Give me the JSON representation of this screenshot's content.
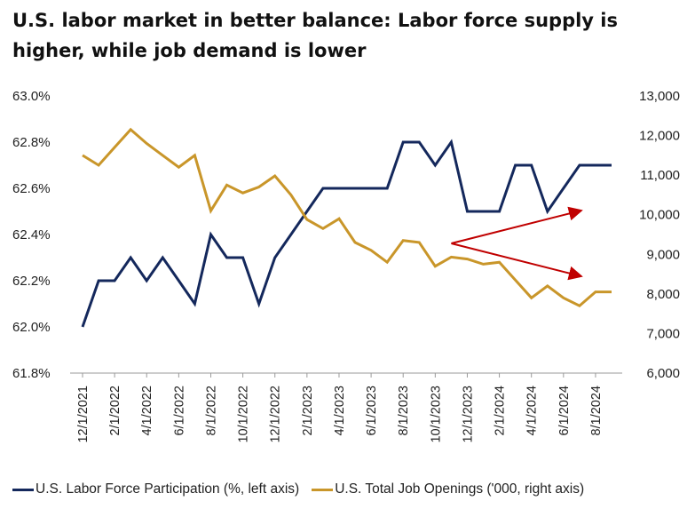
{
  "title": "U.S. labor market in better balance: Labor force supply is higher, while job demand is lower",
  "colors": {
    "participation": "#14285c",
    "openings": "#c9962a",
    "arrow": "#c00000"
  },
  "chart_data": {
    "type": "line",
    "title": "U.S. labor market in better balance: Labor force supply is higher, while job demand is lower",
    "x": [
      "12/1/2021",
      "1/1/2022",
      "2/1/2022",
      "3/1/2022",
      "4/1/2022",
      "5/1/2022",
      "6/1/2022",
      "7/1/2022",
      "8/1/2022",
      "9/1/2022",
      "10/1/2022",
      "11/1/2022",
      "12/1/2022",
      "1/1/2023",
      "2/1/2023",
      "3/1/2023",
      "4/1/2023",
      "5/1/2023",
      "6/1/2023",
      "7/1/2023",
      "8/1/2023",
      "9/1/2023",
      "10/1/2023",
      "11/1/2023",
      "12/1/2023",
      "1/1/2024",
      "2/1/2024",
      "3/1/2024",
      "4/1/2024",
      "5/1/2024",
      "6/1/2024",
      "7/1/2024",
      "8/1/2024",
      "9/1/2024"
    ],
    "x_tick_labels": [
      "12/1/2021",
      "2/1/2022",
      "4/1/2022",
      "6/1/2022",
      "8/1/2022",
      "10/1/2022",
      "12/1/2022",
      "2/1/2023",
      "4/1/2023",
      "6/1/2023",
      "8/1/2023",
      "10/1/2023",
      "12/1/2023",
      "2/1/2024",
      "4/1/2024",
      "6/1/2024",
      "8/1/2024"
    ],
    "y_left": {
      "lim": [
        61.8,
        63.0
      ],
      "ticks": [
        "61.8%",
        "62.0%",
        "62.2%",
        "62.4%",
        "62.6%",
        "62.8%",
        "63.0%"
      ]
    },
    "y_right": {
      "lim": [
        6000,
        13000
      ],
      "ticks": [
        "6,000",
        "7,000",
        "8,000",
        "9,000",
        "10,000",
        "11,000",
        "12,000",
        "13,000"
      ]
    },
    "series": [
      {
        "name": "U.S. Labor Force Participation (%, left axis)",
        "axis": "left",
        "values": [
          62.0,
          62.2,
          62.2,
          62.3,
          62.2,
          62.3,
          62.2,
          62.1,
          62.4,
          62.3,
          62.3,
          62.1,
          62.3,
          62.4,
          62.5,
          62.6,
          62.6,
          62.6,
          62.6,
          62.6,
          62.8,
          62.8,
          62.7,
          62.8,
          62.5,
          62.5,
          62.5,
          62.7,
          62.7,
          62.5,
          62.6,
          62.7,
          62.7,
          62.7
        ]
      },
      {
        "name": "U.S. Total Job Openings ('000, right axis)",
        "axis": "right",
        "values": [
          11500,
          11250,
          11700,
          12150,
          11800,
          11500,
          11200,
          11500,
          10100,
          10750,
          10550,
          10700,
          10980,
          10500,
          9880,
          9650,
          9900,
          9300,
          9100,
          8800,
          9350,
          9300,
          8700,
          8930,
          8880,
          8750,
          8800,
          8350,
          7900,
          8200,
          7900,
          7700,
          8050,
          8050
        ]
      }
    ],
    "annotations": [
      {
        "type": "arrow",
        "direction": "up",
        "from_x": "11/1/2023",
        "to_x": "7/1/2024"
      },
      {
        "type": "arrow",
        "direction": "down",
        "from_x": "11/1/2023",
        "to_x": "7/1/2024"
      }
    ],
    "grid": false,
    "legend": "bottom"
  },
  "legend": [
    {
      "label": "U.S. Labor Force Participation (%, left axis)",
      "color": "#14285c"
    },
    {
      "label": "U.S. Total Job Openings ('000, right axis)",
      "color": "#c9962a"
    }
  ]
}
